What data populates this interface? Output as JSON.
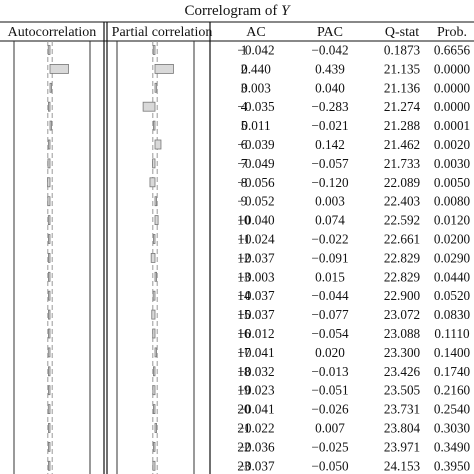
{
  "chart_data": {
    "type": "table",
    "title_prefix": "Correlogram of ",
    "title_var": "Y",
    "panel_headers": [
      "Autocorrelation",
      "Partial correlation"
    ],
    "columns": [
      "AC",
      "PAC",
      "Q-stat",
      "Prob."
    ],
    "rows": [
      {
        "lag": "1",
        "ac": "−0.042",
        "pac": "−0.042",
        "q": "0.1873",
        "p": "0.6656"
      },
      {
        "lag": "2",
        "ac": "0.440",
        "pac": "0.439",
        "q": "21.135",
        "p": "0.0000"
      },
      {
        "lag": "3",
        "ac": "0.003",
        "pac": "0.040",
        "q": "21.136",
        "p": "0.0000"
      },
      {
        "lag": "4",
        "ac": "−0.035",
        "pac": "−0.283",
        "q": "21.274",
        "p": "0.0000"
      },
      {
        "lag": "5",
        "ac": "0.011",
        "pac": "−0.021",
        "q": "21.288",
        "p": "0.0001"
      },
      {
        "lag": "6",
        "ac": "−0.039",
        "pac": "0.142",
        "q": "21.462",
        "p": "0.0020"
      },
      {
        "lag": "7",
        "ac": "−0.049",
        "pac": "−0.057",
        "q": "21.733",
        "p": "0.0030"
      },
      {
        "lag": "8",
        "ac": "−0.056",
        "pac": "−0.120",
        "q": "22.089",
        "p": "0.0050"
      },
      {
        "lag": "9",
        "ac": "−0.052",
        "pac": "0.003",
        "q": "22.403",
        "p": "0.0080"
      },
      {
        "lag": "10",
        "ac": "−0.040",
        "pac": "0.074",
        "q": "22.592",
        "p": "0.0120"
      },
      {
        "lag": "11",
        "ac": "−0.024",
        "pac": "−0.022",
        "q": "22.661",
        "p": "0.0200"
      },
      {
        "lag": "12",
        "ac": "−0.037",
        "pac": "−0.091",
        "q": "22.829",
        "p": "0.0290"
      },
      {
        "lag": "13",
        "ac": "−0.003",
        "pac": "0.015",
        "q": "22.829",
        "p": "0.0440"
      },
      {
        "lag": "14",
        "ac": "−0.037",
        "pac": "−0.044",
        "q": "22.900",
        "p": "0.0520"
      },
      {
        "lag": "15",
        "ac": "−0.037",
        "pac": "−0.077",
        "q": "23.072",
        "p": "0.0830"
      },
      {
        "lag": "16",
        "ac": "−0.012",
        "pac": "−0.054",
        "q": "23.088",
        "p": "0.1110"
      },
      {
        "lag": "17",
        "ac": "−0.041",
        "pac": "0.020",
        "q": "23.300",
        "p": "0.1400"
      },
      {
        "lag": "18",
        "ac": "−0.032",
        "pac": "−0.013",
        "q": "23.426",
        "p": "0.1740"
      },
      {
        "lag": "19",
        "ac": "−0.023",
        "pac": "−0.051",
        "q": "23.505",
        "p": "0.2160"
      },
      {
        "lag": "20",
        "ac": "−0.041",
        "pac": "−0.026",
        "q": "23.731",
        "p": "0.2540"
      },
      {
        "lag": "21",
        "ac": "−0.022",
        "pac": "0.007",
        "q": "23.804",
        "p": "0.3030"
      },
      {
        "lag": "22",
        "ac": "−0.036",
        "pac": "−0.025",
        "q": "23.971",
        "p": "0.3490"
      },
      {
        "lag": "23",
        "ac": "−0.037",
        "pac": "−0.050",
        "q": "24.153",
        "p": "0.3950"
      }
    ],
    "colors": {
      "bar_fill": "#d9d9d9",
      "bar_stroke": "#777777",
      "line": "#333333",
      "bound": "#9a9a9a"
    }
  }
}
